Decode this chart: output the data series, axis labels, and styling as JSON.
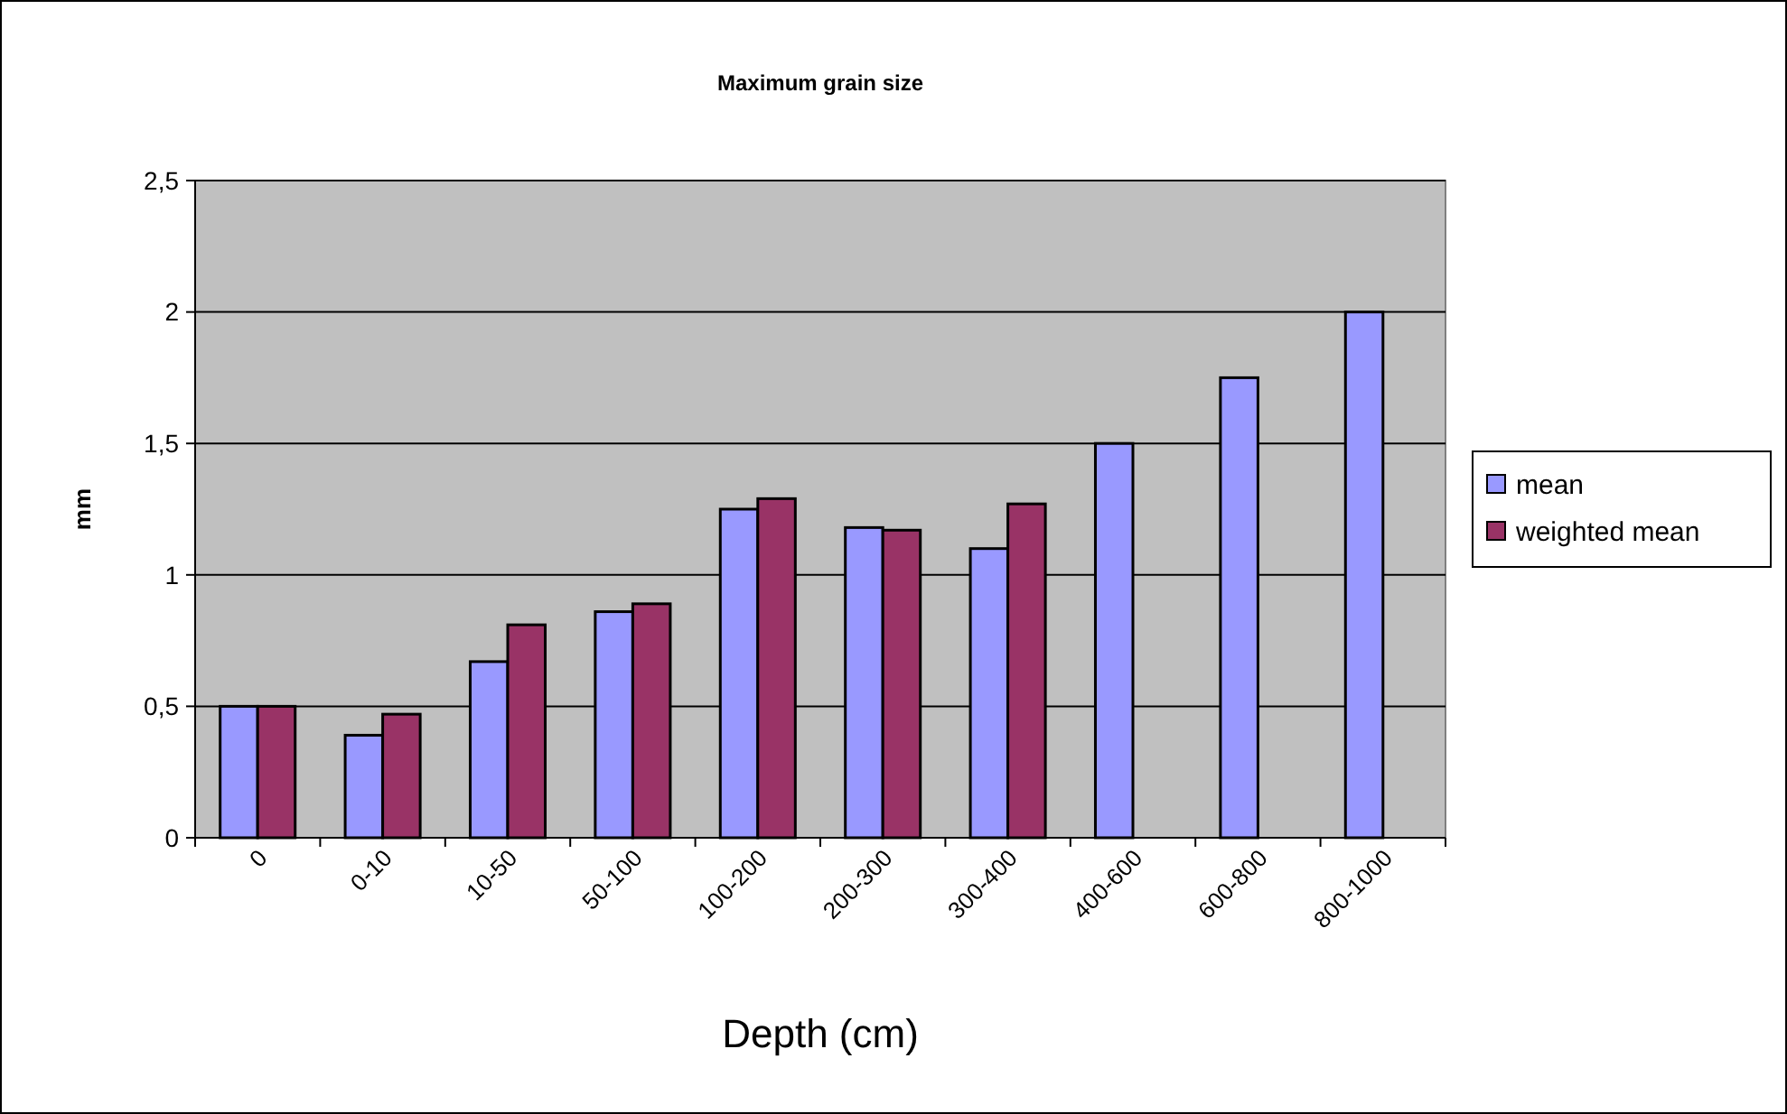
{
  "chart_data": {
    "type": "bar",
    "title": "Maximum grain size",
    "xlabel": "Depth (cm)",
    "ylabel": "mm",
    "categories": [
      "0",
      "0-10",
      "10-50",
      "50-100",
      "100-200",
      "200-300",
      "300-400",
      "400-600",
      "600-800",
      "800-1000"
    ],
    "series": [
      {
        "name": "mean",
        "color": "#9999ff",
        "values": [
          0.5,
          0.39,
          0.67,
          0.86,
          1.25,
          1.18,
          1.1,
          1.5,
          1.75,
          2.0
        ]
      },
      {
        "name": "weighted mean",
        "color": "#993366",
        "values": [
          0.5,
          0.47,
          0.81,
          0.89,
          1.29,
          1.17,
          1.27,
          null,
          null,
          null
        ]
      }
    ],
    "ylim": [
      0,
      2.5
    ],
    "yticks": [
      {
        "value": 0,
        "label": "0"
      },
      {
        "value": 0.5,
        "label": "0,5"
      },
      {
        "value": 1,
        "label": "1"
      },
      {
        "value": 1.5,
        "label": "1,5"
      },
      {
        "value": 2,
        "label": "2"
      },
      {
        "value": 2.5,
        "label": "2,5"
      }
    ],
    "grid": "y",
    "legend": "right"
  }
}
